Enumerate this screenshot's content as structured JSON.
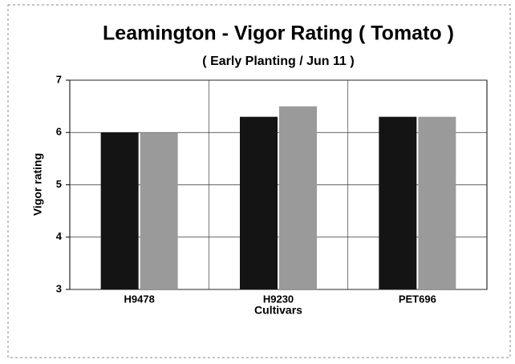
{
  "chart_data": {
    "type": "bar",
    "title": "Leamington - Vigor Rating ( Tomato )",
    "subtitle": "( Early Planting / Jun 11 )",
    "x_label": "Cultivars",
    "y_label": "Vigor rating",
    "categories": [
      "H9478",
      "H9230",
      "PET696"
    ],
    "series": [
      {
        "color": "#141414",
        "values": [
          6.0,
          6.3,
          6.3
        ]
      },
      {
        "color": "#9a9a9a",
        "values": [
          6.0,
          6.5,
          6.3
        ]
      }
    ],
    "ylim": [
      3,
      7
    ],
    "yticks": [
      3,
      4,
      5,
      6,
      7
    ],
    "grid": true
  }
}
